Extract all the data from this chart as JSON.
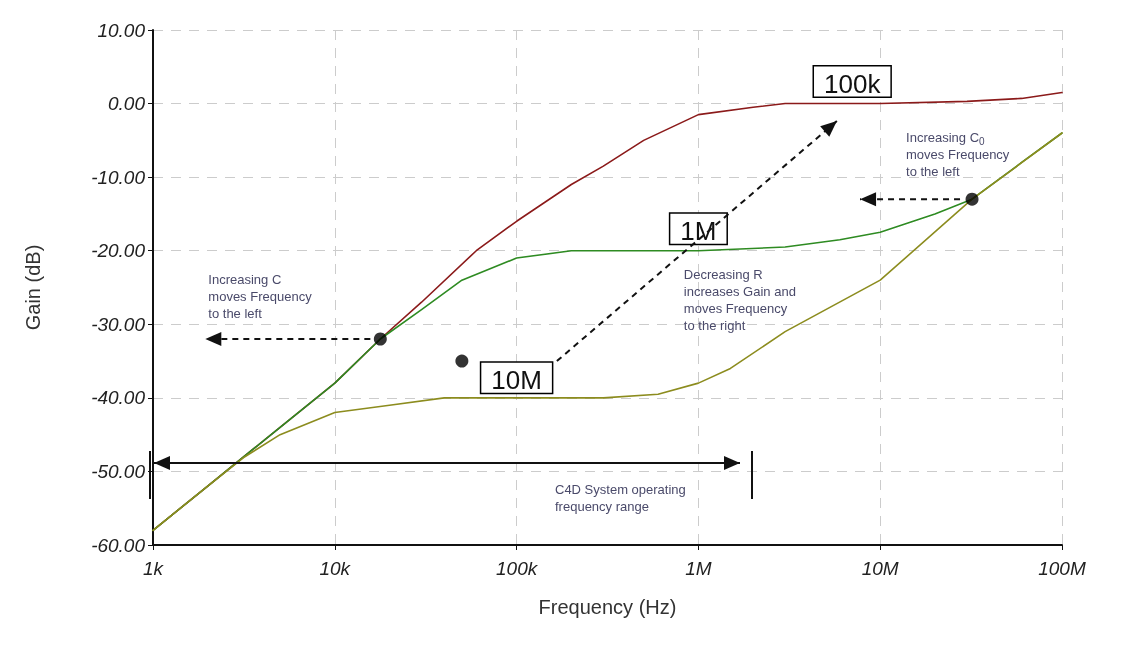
{
  "chart_data": {
    "type": "line",
    "xlabel": "Frequency (Hz)",
    "ylabel": "Gain (dB)",
    "log": "x",
    "xlim": [
      1000,
      100000000
    ],
    "xticks": [
      {
        "value": 1000,
        "label": "1k"
      },
      {
        "value": 10000,
        "label": "10k"
      },
      {
        "value": 100000,
        "label": "100k"
      },
      {
        "value": 1000000,
        "label": "1M"
      },
      {
        "value": 10000000,
        "label": "10M"
      },
      {
        "value": 100000000,
        "label": "100M"
      }
    ],
    "ylim": [
      -60,
      10
    ],
    "yticks": [
      {
        "value": -60,
        "label": "-60.00"
      },
      {
        "value": -50,
        "label": "-50.00"
      },
      {
        "value": -40,
        "label": "-40.00"
      },
      {
        "value": -30,
        "label": "-30.00"
      },
      {
        "value": -20,
        "label": "-20.00"
      },
      {
        "value": -10,
        "label": "-10.00"
      },
      {
        "value": 0,
        "label": "0.00"
      },
      {
        "value": 10,
        "label": "10.00"
      }
    ],
    "grid": true,
    "line_style": "solid",
    "marker": "none",
    "series": [
      {
        "name": "100k",
        "color": "#8b1a1a",
        "x": [
          1000,
          2000,
          3160,
          5000,
          10000,
          17800,
          30000,
          60000,
          100000,
          200000,
          300000,
          500000,
          1000000,
          2000000,
          3000000,
          10000000,
          30000000,
          60000000,
          100000000
        ],
        "values": [
          -58,
          -52,
          -48,
          -44,
          -38,
          -32,
          -27,
          -20,
          -16,
          -11,
          -8.5,
          -5,
          -1.5,
          -0.5,
          0,
          0,
          0.3,
          0.7,
          1.5
        ]
      },
      {
        "name": "1M",
        "color": "#2e8b22",
        "x": [
          1000,
          2000,
          3160,
          5000,
          10000,
          17800,
          30000,
          50000,
          100000,
          200000,
          1000000,
          3000000,
          6000000,
          10000000,
          20000000,
          32000000,
          60000000,
          100000000
        ],
        "values": [
          -58,
          -52,
          -48,
          -44,
          -38,
          -32,
          -28,
          -24,
          -21,
          -20,
          -20,
          -19.5,
          -18.5,
          -17.5,
          -15,
          -13,
          -8,
          -4
        ]
      },
      {
        "name": "10M",
        "color": "#8c8c1e",
        "x": [
          1000,
          2000,
          3200,
          5000,
          10000,
          20000,
          40000,
          100000,
          300000,
          600000,
          1000000,
          1500000,
          3000000,
          10000000,
          32000000,
          100000000
        ],
        "values": [
          -58,
          -52,
          -48,
          -45,
          -42,
          -41,
          -40,
          -40,
          -40,
          -39.5,
          -38,
          -36,
          -31,
          -24,
          -13,
          -4
        ]
      },
      {
        "type": "scatter",
        "color": "#000000",
        "marker": "circle",
        "x": [
          17800,
          50000,
          32000000
        ],
        "values": [
          -32,
          -35,
          -13
        ]
      }
    ],
    "annotations": [
      "Increasing C\nmoves Frequency\nto the left",
      "Decreasing R\nincreases Gain and\nmoves Frequency\nto the right",
      "Increasing C$_{0}$\nmoves Frequency\nto the left",
      "C4D System operating\nfrequency range"
    ]
  }
}
